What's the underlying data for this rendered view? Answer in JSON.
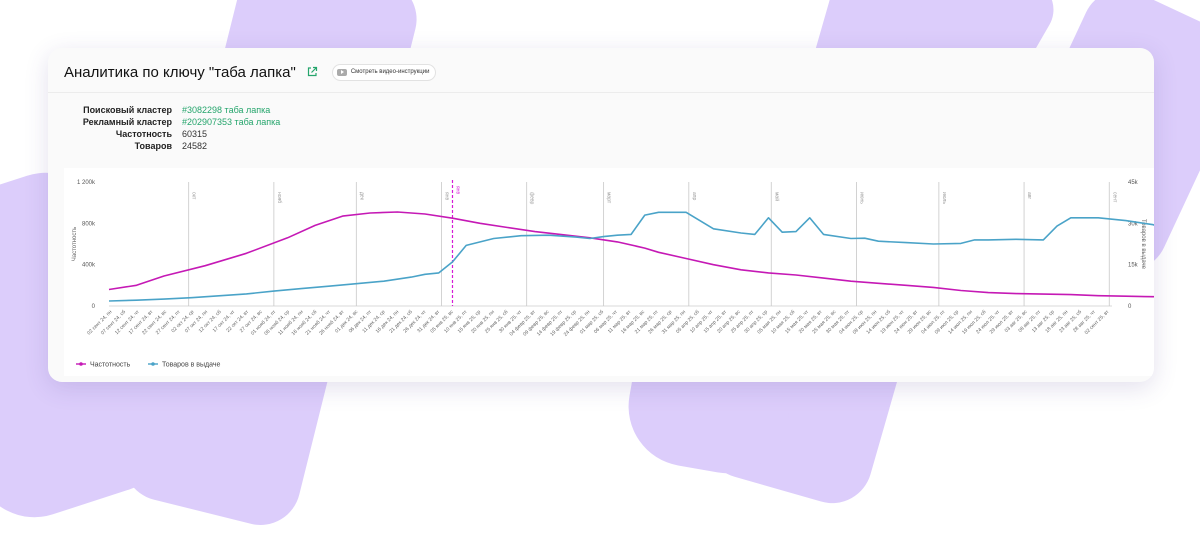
{
  "header": {
    "title": "Аналитика по ключу \"таба лапка\"",
    "video_button_label": "Смотреть видео-инструкции"
  },
  "info": {
    "rows": [
      {
        "label": "Поисковый кластер",
        "value": "#3082298 таба лапка",
        "is_link": true
      },
      {
        "label": "Рекламный кластер",
        "value": "#202907353 таба лапка",
        "is_link": true
      },
      {
        "label": "Частотность",
        "value": "60315",
        "is_link": false
      },
      {
        "label": "Товаров",
        "value": "24582",
        "is_link": false
      }
    ]
  },
  "colors": {
    "frequency": "#c519b5",
    "products": "#4aa3c8",
    "link": "#25a56c",
    "today_marker": "#d61bd6"
  },
  "icons": {
    "external_link": "external-link-icon",
    "video": "video-icon"
  },
  "chart_data": {
    "type": "line",
    "title": "",
    "ylabel_left": "Частотность",
    "ylabel_right": "Товаров в выдаче",
    "ylim_left": [
      0,
      1200000
    ],
    "ylim_right": [
      0,
      45000
    ],
    "yticks_left": [
      "0",
      "400k",
      "800k",
      "1 200k"
    ],
    "yticks_right": [
      "0",
      "15k",
      "30k",
      "45k"
    ],
    "grid": false,
    "legend_position": "bottom-left",
    "x_labels": [
      "02 сент 24, пн",
      "07 сент 24, сб",
      "12 сент 24, чт",
      "17 сент 24, вт",
      "22 сент 24, вс",
      "27 сент 24, пт",
      "02 окт 24, ср",
      "07 окт 24, пн",
      "12 окт 24, сб",
      "17 окт 24, чт",
      "22 окт 24, вт",
      "27 окт 24, вс",
      "01 нояб 24, пт",
      "06 нояб 24, ср",
      "11 нояб 24, пн",
      "16 нояб 24, сб",
      "21 нояб 24, чт",
      "26 нояб 24, вт",
      "01 дек 24, вс",
      "06 дек 24, пт",
      "11 дек 24, ср",
      "16 дек 24, пн",
      "21 дек 24, сб",
      "26 дек 24, чт",
      "31 дек 24, вт",
      "05 янв 25, вс",
      "10 янв 25, пт",
      "15 янв 25, ср",
      "20 янв 25, пн",
      "25 янв 25, сб",
      "30 янв 25, чт",
      "04 февр 25, вт",
      "09 февр 25, вс",
      "14 февр 25, пт",
      "19 февр 25, ср",
      "24 февр 25, пн",
      "01 мар 25, сб",
      "06 мар 25, чт",
      "11 мар 25, вт",
      "16 мар 25, вс",
      "21 мар 25, пт",
      "26 мар 25, ср",
      "31 мар 25, пн",
      "05 апр 25, сб",
      "10 апр 25, чт",
      "15 апр 25, вт",
      "20 апр 25, вс",
      "25 апр 25, пт",
      "30 апр 25, ср",
      "05 мая 25, пн",
      "10 мая 25, сб",
      "15 мая 25, чт",
      "20 мая 25, вт",
      "25 мая 25, вс",
      "30 мая 25, пт",
      "04 июн 25, ср",
      "09 июн 25, пн",
      "14 июн 25, сб",
      "19 июн 25, чт",
      "24 июн 25, вт",
      "29 июн 25, вс",
      "04 июл 25, пт",
      "09 июл 25, ср",
      "14 июл 25, пн",
      "19 июл 25, сб",
      "24 июл 25, чт",
      "29 июл 25, вт",
      "03 авг 25, вс",
      "08 авг 25, пт",
      "13 авг 25, ср",
      "18 авг 25, пн",
      "23 авг 25, сб",
      "28 авг 25, чт",
      "02 сент 25, вт"
    ],
    "month_markers": [
      {
        "label": "окт",
        "day": 29
      },
      {
        "label": "нояб",
        "day": 60
      },
      {
        "label": "дек",
        "day": 90
      },
      {
        "label": "янв",
        "day": 121
      },
      {
        "label": "февр",
        "day": 152
      },
      {
        "label": "март",
        "day": 180
      },
      {
        "label": "апр",
        "day": 211
      },
      {
        "label": "май",
        "day": 241
      },
      {
        "label": "июнь",
        "day": 272
      },
      {
        "label": "июль",
        "day": 302
      },
      {
        "label": "авг",
        "day": 333
      },
      {
        "label": "сент",
        "day": 364
      }
    ],
    "today_marker": {
      "label": "янв",
      "day": 125
    },
    "series": [
      {
        "name": "Частотность",
        "axis": "left",
        "points": [
          [
            0,
            160000
          ],
          [
            10,
            200000
          ],
          [
            20,
            290000
          ],
          [
            35,
            390000
          ],
          [
            50,
            510000
          ],
          [
            65,
            660000
          ],
          [
            75,
            780000
          ],
          [
            85,
            870000
          ],
          [
            95,
            900000
          ],
          [
            105,
            910000
          ],
          [
            115,
            890000
          ],
          [
            125,
            850000
          ],
          [
            135,
            800000
          ],
          [
            145,
            760000
          ],
          [
            155,
            720000
          ],
          [
            165,
            690000
          ],
          [
            175,
            660000
          ],
          [
            185,
            620000
          ],
          [
            195,
            560000
          ],
          [
            200,
            520000
          ],
          [
            210,
            460000
          ],
          [
            220,
            400000
          ],
          [
            230,
            350000
          ],
          [
            240,
            320000
          ],
          [
            250,
            300000
          ],
          [
            260,
            270000
          ],
          [
            270,
            240000
          ],
          [
            280,
            220000
          ],
          [
            290,
            200000
          ],
          [
            300,
            180000
          ],
          [
            310,
            150000
          ],
          [
            320,
            130000
          ],
          [
            330,
            120000
          ],
          [
            340,
            115000
          ],
          [
            350,
            110000
          ],
          [
            360,
            100000
          ],
          [
            370,
            95000
          ],
          [
            380,
            90000
          ],
          [
            390,
            85000
          ],
          [
            400,
            80000
          ],
          [
            410,
            75000
          ],
          [
            420,
            70000
          ],
          [
            430,
            66000
          ],
          [
            440,
            63000
          ],
          [
            450,
            60315
          ]
        ]
      },
      {
        "name": "Товаров в выдаче",
        "axis": "right",
        "points": [
          [
            0,
            1800
          ],
          [
            10,
            2100
          ],
          [
            20,
            2500
          ],
          [
            30,
            3000
          ],
          [
            40,
            3700
          ],
          [
            50,
            4400
          ],
          [
            60,
            5400
          ],
          [
            70,
            6300
          ],
          [
            80,
            7200
          ],
          [
            90,
            8100
          ],
          [
            100,
            9000
          ],
          [
            110,
            10500
          ],
          [
            115,
            11500
          ],
          [
            120,
            12000
          ],
          [
            125,
            16000
          ],
          [
            130,
            22000
          ],
          [
            140,
            24500
          ],
          [
            150,
            25500
          ],
          [
            160,
            25700
          ],
          [
            170,
            25000
          ],
          [
            175,
            24500
          ],
          [
            180,
            25200
          ],
          [
            185,
            25700
          ],
          [
            190,
            26000
          ],
          [
            195,
            33000
          ],
          [
            200,
            34000
          ],
          [
            210,
            34000
          ],
          [
            220,
            28000
          ],
          [
            230,
            26500
          ],
          [
            235,
            26000
          ],
          [
            240,
            32000
          ],
          [
            245,
            26800
          ],
          [
            250,
            27000
          ],
          [
            255,
            32000
          ],
          [
            260,
            26000
          ],
          [
            270,
            24500
          ],
          [
            275,
            24600
          ],
          [
            280,
            23500
          ],
          [
            290,
            23000
          ],
          [
            300,
            22500
          ],
          [
            310,
            22700
          ],
          [
            315,
            24000
          ],
          [
            320,
            24000
          ],
          [
            330,
            24200
          ],
          [
            340,
            24000
          ],
          [
            345,
            29000
          ],
          [
            350,
            32000
          ],
          [
            360,
            32000
          ],
          [
            370,
            31000
          ],
          [
            380,
            29500
          ],
          [
            385,
            27500
          ],
          [
            390,
            27000
          ],
          [
            395,
            24500
          ],
          [
            400,
            23500
          ],
          [
            405,
            25500
          ],
          [
            410,
            25000
          ],
          [
            420,
            24500
          ],
          [
            430,
            24000
          ],
          [
            440,
            23500
          ],
          [
            445,
            22500
          ],
          [
            450,
            24500
          ]
        ]
      }
    ]
  }
}
